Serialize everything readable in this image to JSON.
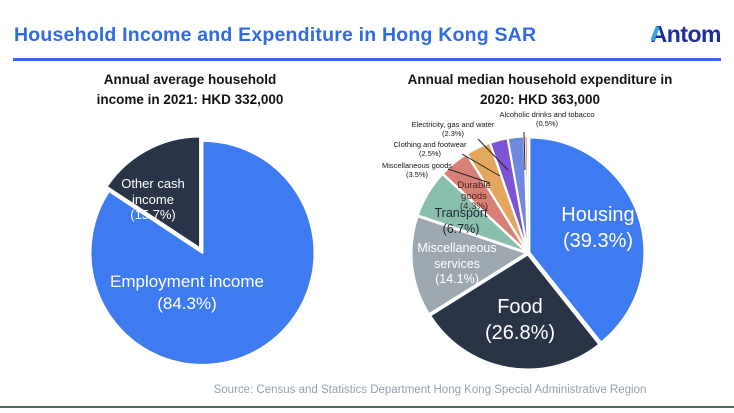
{
  "page": {
    "title": "Household Income and Expenditure in Hong Kong SAR",
    "logo_text": "Antom",
    "source": "Source: Census and Statistics Department Hong Kong Special Administrative Region",
    "accent_blue": "#2f6be2",
    "logo_navy": "#1c2f9c",
    "logo_cyan": "#35a8e0",
    "bottom_line_color": "#47724f"
  },
  "chart_data": [
    {
      "type": "pie",
      "title": "Annual average household income in 2021: HKD 332,000",
      "title_line1": "Annual average household",
      "title_line2": "income in 2021: HKD 332,000",
      "unit": "percent",
      "slices": [
        {
          "label": "Employment income",
          "value": 84.3,
          "pct_text": "(84.3%)",
          "color": "#3e7bf0"
        },
        {
          "label": "Other cash income",
          "value": 15.7,
          "pct_text": "(15.7%)",
          "color": "#2a3447"
        }
      ]
    },
    {
      "type": "pie",
      "title": "Annual median household expenditure in 2020: HKD 363,000",
      "title_line1": "Annual median household expenditure in",
      "title_line2": "2020: HKD 363,000",
      "unit": "percent",
      "slices": [
        {
          "label": "Housing",
          "value": 39.3,
          "pct_text": "(39.3%)",
          "color": "#3e7bf0"
        },
        {
          "label": "Food",
          "value": 26.8,
          "pct_text": "(26.8%)",
          "color": "#2a3447"
        },
        {
          "label": "Miscellaneous services",
          "value": 14.1,
          "pct_text": "(14.1%)",
          "color": "#9da8b1"
        },
        {
          "label": "Transport",
          "value": 6.7,
          "pct_text": "(6.7%)",
          "color": "#8abfae"
        },
        {
          "label": "Durable goods",
          "value": 4.3,
          "pct_text": "(4.3%)",
          "color": "#d87f76"
        },
        {
          "label": "Miscellaneous goods",
          "value": 3.5,
          "pct_text": "(3.5%)",
          "color": "#e3a85e"
        },
        {
          "label": "Clothing and footwear",
          "value": 2.5,
          "pct_text": "(2.5%)",
          "color": "#7c55d6"
        },
        {
          "label": "Electricity, gas and water",
          "value": 2.3,
          "pct_text": "(2.3%)",
          "color": "#6e89e0"
        },
        {
          "label": "Alcoholic drinks and tobacco",
          "value": 0.5,
          "pct_text": "(0.5%)",
          "color": "#e59d98"
        }
      ]
    }
  ]
}
